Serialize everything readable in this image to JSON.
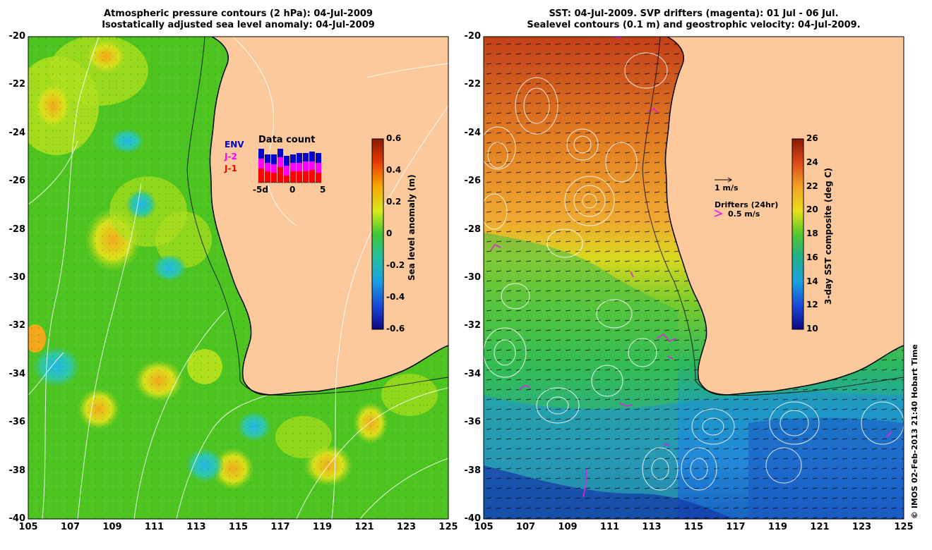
{
  "left_panel": {
    "title_line1": "Atmospheric pressure contours (2 hPa): 04-Jul-2009",
    "title_line2": "Isostatically adjusted sea level anomaly: 04-Jul-2009",
    "colorbar_label": "Sea level anomaly (m)",
    "colorbar_ticks": [
      "0.6",
      "0.4",
      "0.2",
      "0",
      "-0.2",
      "-0.4",
      "-0.6"
    ],
    "inset": {
      "title": "Data count",
      "legend": [
        "ENV",
        "J-2",
        "J-1"
      ],
      "legend_colors": [
        "#0000cc",
        "#ff00ff",
        "#ff0000"
      ],
      "x_ticks": [
        "-5d",
        "0",
        "5"
      ]
    }
  },
  "right_panel": {
    "title_line1": "SST: 04-Jul-2009. SVP drifters (magenta): 01 Jul - 06 Jul.",
    "title_line2": "Sealevel contours (0.1 m) and geostrophic velocity: 04-Jul-2009.",
    "colorbar_label": "3-day SST composite (deg C)",
    "colorbar_ticks": [
      "26",
      "24",
      "22",
      "20",
      "18",
      "16",
      "14",
      "12",
      "10"
    ],
    "velocity_scale_label": "1 m/s",
    "drifters_label": "Drifters (24hr)",
    "drifters_scale_label": "0.5 m/s"
  },
  "axes": {
    "lat_ticks": [
      "-20",
      "-22",
      "-24",
      "-26",
      "-28",
      "-30",
      "-32",
      "-34",
      "-36",
      "-38",
      "-40"
    ],
    "lon_ticks": [
      "105",
      "107",
      "109",
      "111",
      "113",
      "115",
      "117",
      "119",
      "121",
      "123",
      "125"
    ]
  },
  "credit": "© IMOS 02-Feb-2013 21:40 Hobart Time",
  "colors": {
    "land": "#fbc99b",
    "sla_background": "#4ec421",
    "sst_north": "#d9661b",
    "sst_south": "#2a86e0"
  }
}
